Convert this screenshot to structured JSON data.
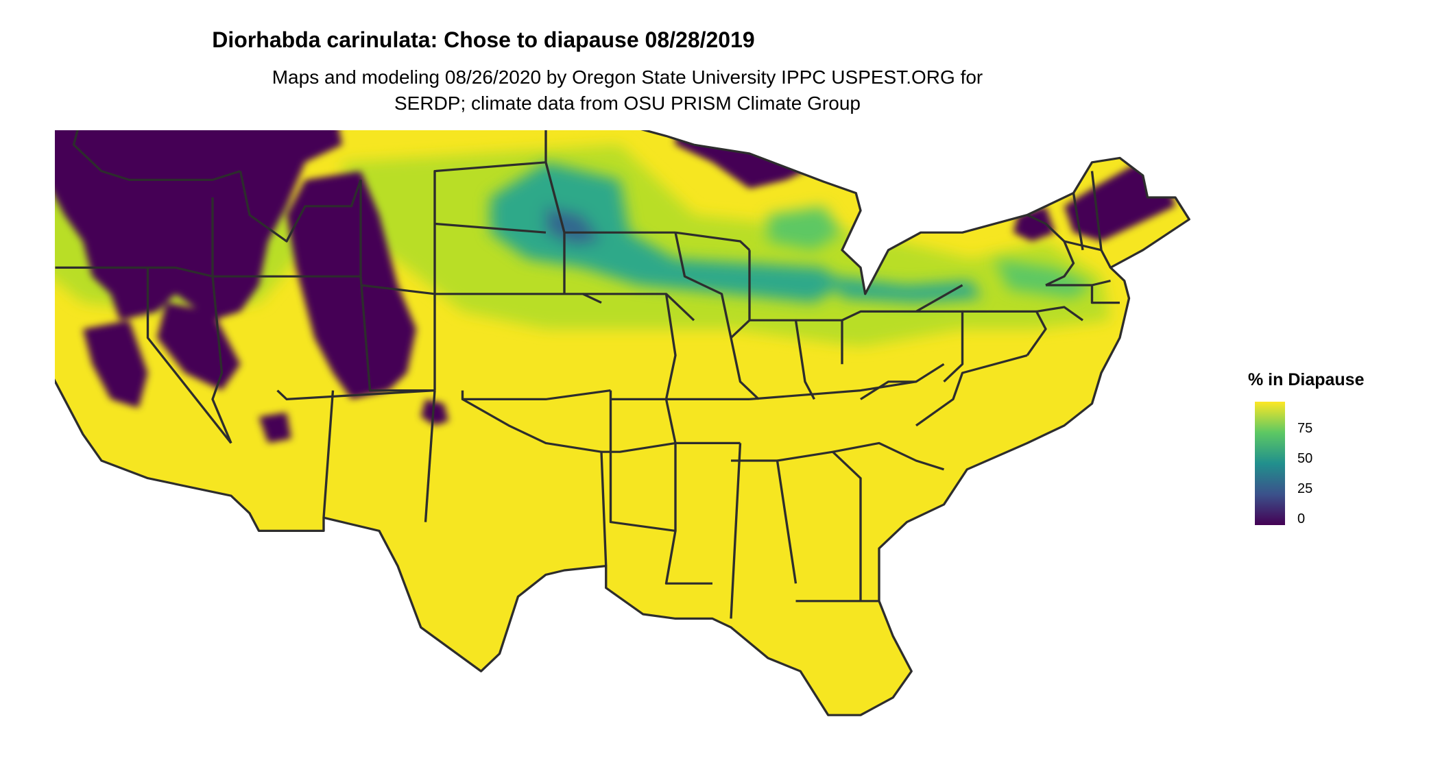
{
  "title": "Diorhabda carinulata: Chose to diapause 08/28/2019",
  "subtitle_line1": "Maps and modeling 08/26/2020 by Oregon State University IPPC USPEST.ORG for",
  "subtitle_line2": "SERDP; climate data from OSU PRISM Climate Group",
  "legend": {
    "title": "% in Diapause",
    "ticks": [
      "75",
      "50",
      "25",
      "0"
    ],
    "colors": [
      "#440154",
      "#3b528b",
      "#21908d",
      "#5dc863",
      "#fde725"
    ]
  },
  "colors": {
    "high": "#f6e621",
    "mid_high": "#b9de28",
    "mid": "#2ea989",
    "mid_low": "#31688e",
    "low": "#440154",
    "borders": "#2d2d2d"
  }
}
